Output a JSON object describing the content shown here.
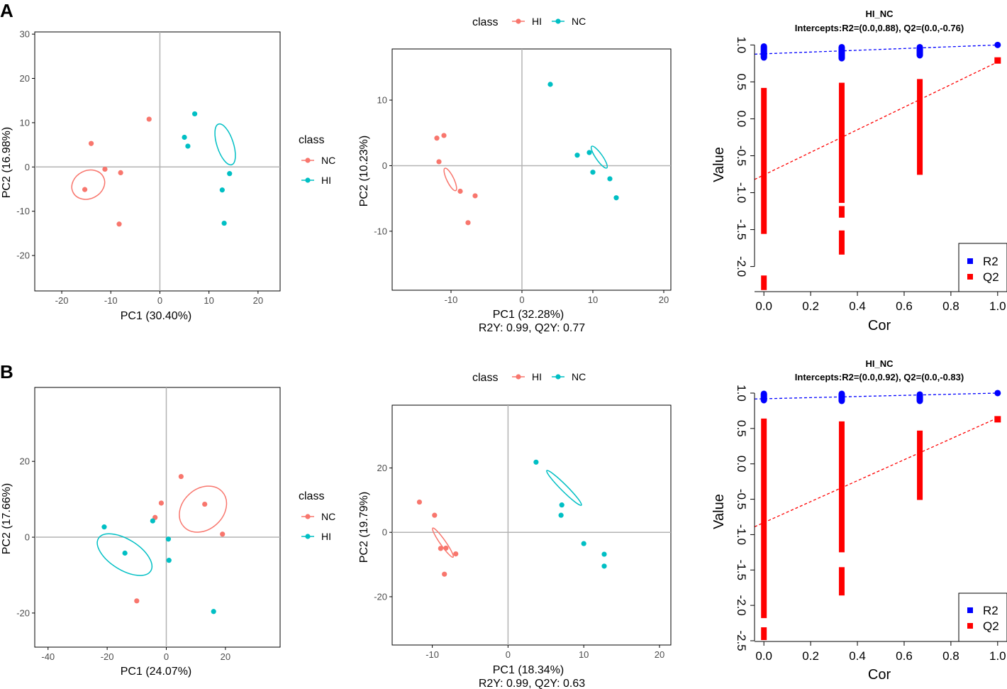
{
  "figure": {
    "panel_labels": [
      "A",
      "B"
    ],
    "colors": {
      "red": "#F8766D",
      "teal": "#00BFC4",
      "r2": "#0000FF",
      "q2": "#FF0000",
      "axis_line": "#b3b3b3"
    }
  },
  "chart_data": [
    {
      "panel": "A",
      "type": "scatter",
      "subtype": "pca",
      "xlabel": "PC1 (30.40%)",
      "ylabel": "PC2 (16.98%)",
      "xlim": [
        -25.5,
        24.5
      ],
      "ylim": [
        -28,
        30.5
      ],
      "xticks": [
        -20,
        -10,
        0,
        10,
        20
      ],
      "yticks": [
        -20,
        -10,
        0,
        10,
        20,
        30
      ],
      "legend": {
        "title": "class",
        "position": "right",
        "entries": [
          {
            "label": "NC",
            "color": "#F8766D"
          },
          {
            "label": "HI",
            "color": "#00BFC4"
          }
        ]
      },
      "series": [
        {
          "name": "NC",
          "color": "#F8766D",
          "points": [
            [
              -14,
              5.3
            ],
            [
              -11.2,
              -0.5
            ],
            [
              -8,
              -1.3
            ],
            [
              -15.3,
              -5.1
            ],
            [
              -8.3,
              -12.9
            ],
            [
              -2.2,
              10.8
            ]
          ],
          "ellipse": {
            "cx": -14.6,
            "cy": -4,
            "rx": 24,
            "ry": 19.7,
            "angle": -27
          }
        },
        {
          "name": "HI",
          "color": "#00BFC4",
          "points": [
            [
              7.1,
              12
            ],
            [
              5,
              6.7
            ],
            [
              5.7,
              4.7
            ],
            [
              14.2,
              -1.5
            ],
            [
              12.7,
              -5.2
            ],
            [
              13.1,
              -12.7
            ]
          ],
          "ellipse": {
            "cx": 13.3,
            "cy": 5.1,
            "rx": 11.6,
            "ry": 30.1,
            "angle": -18
          }
        }
      ]
    },
    {
      "panel": "A",
      "type": "scatter",
      "subtype": "pls-da",
      "xlabel": "PC1 (32.28%)",
      "ylabel": "PC2 (10.23%)",
      "caption": "R2Y: 0.99, Q2Y: 0.77",
      "xlim": [
        -18.3,
        21
      ],
      "ylim": [
        -19,
        17.8
      ],
      "xticks": [
        -10,
        0,
        10,
        20
      ],
      "yticks": [
        -10,
        0,
        10
      ],
      "legend": {
        "title": "class",
        "position": "top",
        "entries": [
          {
            "label": "HI",
            "color": "#F8766D"
          },
          {
            "label": "NC",
            "color": "#00BFC4"
          }
        ]
      },
      "series": [
        {
          "name": "HI",
          "color": "#F8766D",
          "points": [
            [
              -12,
              4.2
            ],
            [
              -11,
              4.6
            ],
            [
              -11.7,
              0.6
            ],
            [
              -8.7,
              -3.9
            ],
            [
              -6.6,
              -4.6
            ],
            [
              -7.6,
              -8.7
            ]
          ],
          "ellipse": {
            "cx": -10.1,
            "cy": -2.1,
            "rx": 17.5,
            "ry": 4.9,
            "angle": 64
          }
        },
        {
          "name": "NC",
          "color": "#00BFC4",
          "points": [
            [
              4,
              12.4
            ],
            [
              7.8,
              1.6
            ],
            [
              9.5,
              2
            ],
            [
              10,
              -1
            ],
            [
              12.4,
              -2
            ],
            [
              13.3,
              -4.9
            ]
          ],
          "ellipse": {
            "cx": 10.9,
            "cy": 1.3,
            "rx": 18.6,
            "ry": 4.7,
            "angle": 55
          }
        }
      ]
    },
    {
      "panel": "A",
      "type": "scatter",
      "subtype": "permutation",
      "title": "HI_NC",
      "subtitle": "Intercepts:R2=(0.0,0.88), Q2=(0.0,-0.76)",
      "xlabel": "Cor",
      "ylabel": "Value",
      "xlim": [
        -0.04,
        1.04
      ],
      "ylim": [
        -2.34,
        1.09
      ],
      "xticks": [
        0.0,
        0.2,
        0.4,
        0.6,
        0.8,
        1.0
      ],
      "yticks": [
        -2.0,
        -1.5,
        -1.0,
        -0.5,
        0.0,
        0.5,
        1.0
      ],
      "legend": {
        "position": "bottom-right",
        "entries": [
          {
            "label": "R2",
            "color": "#0000FF"
          },
          {
            "label": "Q2",
            "color": "#FF0000"
          }
        ]
      },
      "r2_line": {
        "intercept": 0.88,
        "end": [
          1.0,
          1.0
        ]
      },
      "q2_line": {
        "intercept": -0.76,
        "end": [
          1.0,
          0.77
        ]
      },
      "r2_columns": [
        {
          "x": 0.0,
          "ymin": 0.83,
          "ymax": 0.98
        },
        {
          "x": 0.333,
          "ymin": 0.82,
          "ymax": 0.97
        },
        {
          "x": 0.667,
          "ymin": 0.86,
          "ymax": 0.97
        }
      ],
      "q2_columns": [
        {
          "x": 0.0,
          "ranges": [
            [
              -1.52,
              0.38
            ],
            [
              -2.28,
              -2.16
            ]
          ]
        },
        {
          "x": 0.333,
          "ranges": [
            [
              -1.1,
              0.45
            ],
            [
              -1.8,
              -1.55
            ],
            [
              -1.3,
              -1.22
            ]
          ]
        },
        {
          "x": 0.667,
          "ranges": [
            [
              -0.72,
              0.5
            ]
          ]
        }
      ],
      "points": {
        "r2_original": [
          1.0,
          1.0
        ],
        "q2_original": [
          1.0,
          0.79
        ]
      }
    },
    {
      "panel": "B",
      "type": "scatter",
      "subtype": "pca",
      "xlabel": "PC1 (24.07%)",
      "ylabel": "PC2 (17.66%)",
      "xlim": [
        -44.5,
        38.5
      ],
      "ylim": [
        -29,
        39.5
      ],
      "xticks": [
        -40,
        -20,
        0,
        20
      ],
      "yticks": [
        -20,
        0,
        20
      ],
      "legend": {
        "title": "class",
        "position": "right",
        "entries": [
          {
            "label": "NC",
            "color": "#F8766D"
          },
          {
            "label": "HI",
            "color": "#00BFC4"
          }
        ]
      },
      "series": [
        {
          "name": "NC",
          "color": "#F8766D",
          "points": [
            [
              5,
              16
            ],
            [
              -1.7,
              9
            ],
            [
              13,
              8.7
            ],
            [
              -3.8,
              5.2
            ],
            [
              19,
              0.8
            ],
            [
              -10,
              -16.8
            ]
          ],
          "ellipse": {
            "cx": 12.4,
            "cy": 7.4,
            "rx": 36.6,
            "ry": 28.6,
            "angle": -42
          }
        },
        {
          "name": "HI",
          "color": "#00BFC4",
          "points": [
            [
              -21,
              2.7
            ],
            [
              -4.6,
              4.3
            ],
            [
              0.7,
              -0.5
            ],
            [
              -14,
              -4.2
            ],
            [
              0.9,
              -6.1
            ],
            [
              16,
              -19.6
            ]
          ],
          "ellipse": {
            "cx": -14.1,
            "cy": -4.6,
            "rx": 43.4,
            "ry": 21.5,
            "angle": 32
          }
        }
      ]
    },
    {
      "panel": "B",
      "type": "scatter",
      "subtype": "pls-da",
      "xlabel": "PC1 (18.34%)",
      "ylabel": "PC2 (19.79%)",
      "caption": "R2Y: 0.99, Q2Y: 0.63",
      "xlim": [
        -15.3,
        21.5
      ],
      "ylim": [
        -35,
        39.5
      ],
      "xticks": [
        -10,
        0,
        10,
        20
      ],
      "yticks": [
        -20,
        0,
        20
      ],
      "legend": {
        "title": "class",
        "position": "top",
        "entries": [
          {
            "label": "HI",
            "color": "#F8766D"
          },
          {
            "label": "NC",
            "color": "#00BFC4"
          }
        ]
      },
      "series": [
        {
          "name": "HI",
          "color": "#F8766D",
          "points": [
            [
              -11.7,
              9.4
            ],
            [
              -9.7,
              5.3
            ],
            [
              -8.9,
              -5
            ],
            [
              -8.2,
              -4.9
            ],
            [
              -6.9,
              -6.7
            ],
            [
              -8.4,
              -13
            ]
          ],
          "ellipse": {
            "cx": -8.6,
            "cy": -3.2,
            "rx": 25,
            "ry": 3.9,
            "angle": 55
          }
        },
        {
          "name": "NC",
          "color": "#00BFC4",
          "points": [
            [
              3.7,
              21.8
            ],
            [
              7.1,
              8.5
            ],
            [
              7,
              5.3
            ],
            [
              10,
              -3.5
            ],
            [
              12.7,
              -6.8
            ],
            [
              12.7,
              -10.5
            ]
          ],
          "ellipse": {
            "cx": 7.4,
            "cy": 13.8,
            "rx": 34.5,
            "ry": 4.5,
            "angle": 45
          }
        }
      ]
    },
    {
      "panel": "B",
      "type": "scatter",
      "subtype": "permutation",
      "title": "HI_NC",
      "subtitle": "Intercepts:R2=(0.0,0.92), Q2=(0.0,-0.83)",
      "xlabel": "Cor",
      "ylabel": "Value",
      "xlim": [
        -0.04,
        1.04
      ],
      "ylim": [
        -2.51,
        1.08
      ],
      "xticks": [
        0.0,
        0.2,
        0.4,
        0.6,
        0.8,
        1.0
      ],
      "yticks": [
        -2.5,
        -2.0,
        -1.5,
        -1.0,
        -0.5,
        0.0,
        0.5,
        1.0
      ],
      "legend": {
        "position": "bottom-right",
        "entries": [
          {
            "label": "R2",
            "color": "#0000FF"
          },
          {
            "label": "Q2",
            "color": "#FF0000"
          }
        ]
      },
      "r2_line": {
        "intercept": 0.92,
        "end": [
          1.0,
          1.0
        ]
      },
      "q2_line": {
        "intercept": -0.83,
        "end": [
          1.0,
          0.65
        ]
      },
      "r2_columns": [
        {
          "x": 0.0,
          "ymin": 0.9,
          "ymax": 0.99
        },
        {
          "x": 0.333,
          "ymin": 0.89,
          "ymax": 0.99
        },
        {
          "x": 0.667,
          "ymin": 0.89,
          "ymax": 0.98
        }
      ],
      "q2_columns": [
        {
          "x": 0.0,
          "ranges": [
            [
              -2.14,
              0.6
            ],
            [
              -2.45,
              -2.35
            ]
          ]
        },
        {
          "x": 0.333,
          "ranges": [
            [
              -1.21,
              0.56
            ],
            [
              -1.82,
              -1.5
            ]
          ]
        },
        {
          "x": 0.667,
          "ranges": [
            [
              -0.47,
              0.43
            ]
          ]
        }
      ],
      "points": {
        "r2_original": [
          1.0,
          1.0
        ],
        "q2_original": [
          1.0,
          0.63
        ]
      }
    }
  ]
}
